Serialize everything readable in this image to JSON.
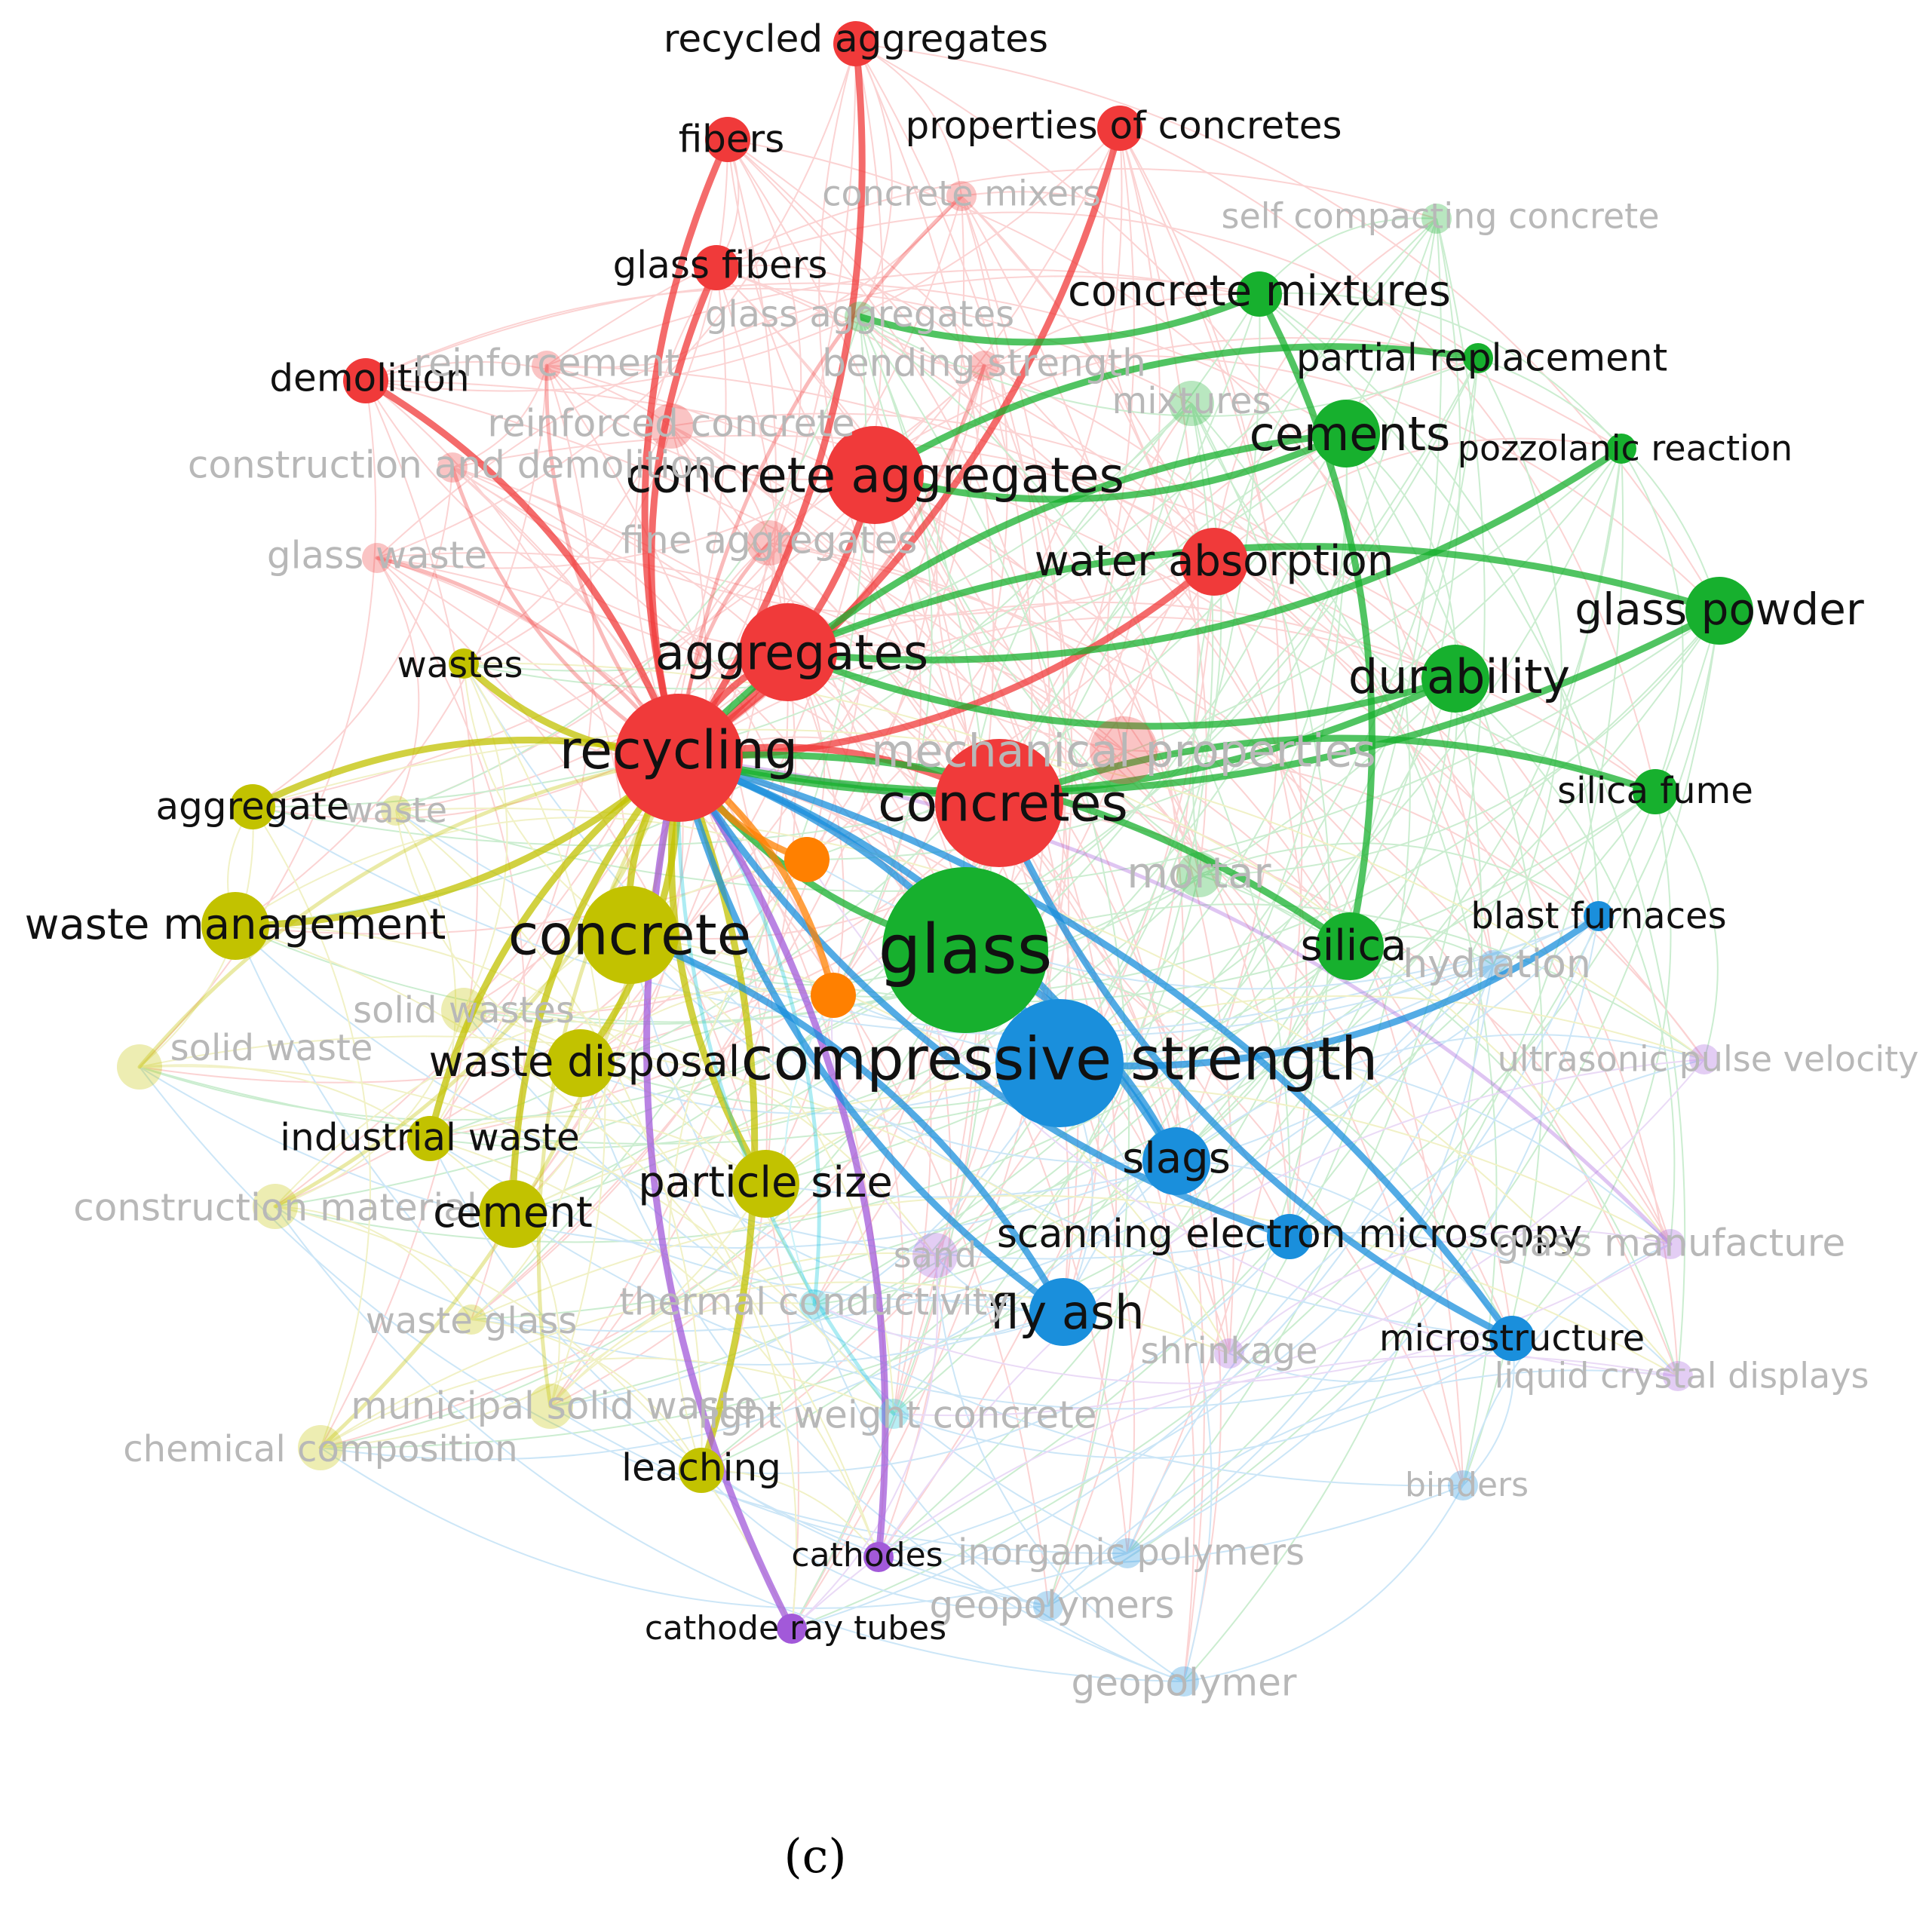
{
  "figure": {
    "caption": "(c)"
  },
  "clusters": {
    "red": "#f03a3a",
    "green": "#17b02e",
    "yellow": "#c2c200",
    "blue": "#1a8fdc",
    "purple": "#a259d9",
    "cyan": "#14c8dc",
    "orange": "#ff8000"
  },
  "nodes": [
    {
      "id": "recycling",
      "label": "recycling",
      "cluster": "red",
      "size": "xl",
      "faded": false
    },
    {
      "id": "aggregates",
      "label": "aggregates",
      "cluster": "red",
      "size": "l",
      "faded": false
    },
    {
      "id": "concrete_aggregates",
      "label": "concrete aggregates",
      "cluster": "red",
      "size": "l",
      "faded": false
    },
    {
      "id": "concretes",
      "label": "concretes",
      "cluster": "red",
      "size": "xl",
      "faded": false
    },
    {
      "id": "mechanical_properties",
      "label": "mechanical properties",
      "cluster": "red",
      "size": "m",
      "faded": true
    },
    {
      "id": "water_absorption",
      "label": "water absorption",
      "cluster": "red",
      "size": "m",
      "faded": false
    },
    {
      "id": "recycled_aggregates",
      "label": "recycled aggregates",
      "cluster": "red",
      "size": "s",
      "faded": false
    },
    {
      "id": "fibers",
      "label": "fibers",
      "cluster": "red",
      "size": "s",
      "faded": false
    },
    {
      "id": "properties_of_concretes",
      "label": "properties of concretes",
      "cluster": "red",
      "size": "s",
      "faded": false
    },
    {
      "id": "concrete_mixers",
      "label": "concrete mixers",
      "cluster": "red",
      "size": "xs",
      "faded": true
    },
    {
      "id": "glass_fibers",
      "label": "glass fibers",
      "cluster": "red",
      "size": "s",
      "faded": false
    },
    {
      "id": "demolition",
      "label": "demolition",
      "cluster": "red",
      "size": "s",
      "faded": false
    },
    {
      "id": "reinforcement",
      "label": "reinforcement",
      "cluster": "red",
      "size": "xs",
      "faded": true
    },
    {
      "id": "bending_strength",
      "label": "bending strength",
      "cluster": "red",
      "size": "xs",
      "faded": true
    },
    {
      "id": "reinforced_concrete",
      "label": "reinforced concrete",
      "cluster": "red",
      "size": "s",
      "faded": true
    },
    {
      "id": "construction_and_demolition",
      "label": "construction and demolition",
      "cluster": "red",
      "size": "xs",
      "faded": true
    },
    {
      "id": "glass_waste",
      "label": "glass waste",
      "cluster": "red",
      "size": "xs",
      "faded": true
    },
    {
      "id": "fine_aggregates",
      "label": "fine aggregates",
      "cluster": "red",
      "size": "s",
      "faded": true
    },
    {
      "id": "glass",
      "label": "glass",
      "cluster": "green",
      "size": "xxl",
      "faded": false
    },
    {
      "id": "concrete_mixtures",
      "label": "concrete mixtures",
      "cluster": "green",
      "size": "s",
      "faded": false
    },
    {
      "id": "partial_replacement",
      "label": "partial replacement",
      "cluster": "green",
      "size": "xs",
      "faded": false
    },
    {
      "id": "cements",
      "label": "cements",
      "cluster": "green",
      "size": "m",
      "faded": false
    },
    {
      "id": "pozzolanic_reaction",
      "label": "pozzolanic reaction",
      "cluster": "green",
      "size": "xs",
      "faded": false
    },
    {
      "id": "glass_powder",
      "label": "glass powder",
      "cluster": "green",
      "size": "m",
      "faded": false
    },
    {
      "id": "durability",
      "label": "durability",
      "cluster": "green",
      "size": "m",
      "faded": false
    },
    {
      "id": "silica_fume",
      "label": "silica fume",
      "cluster": "green",
      "size": "s",
      "faded": false
    },
    {
      "id": "mortar",
      "label": "mortar",
      "cluster": "green",
      "size": "s",
      "faded": true
    },
    {
      "id": "silica",
      "label": "silica",
      "cluster": "green",
      "size": "m",
      "faded": false
    },
    {
      "id": "mixtures",
      "label": "mixtures",
      "cluster": "green",
      "size": "s",
      "faded": true
    },
    {
      "id": "self_compacting_concrete",
      "label": "self compacting concrete",
      "cluster": "green",
      "size": "xs",
      "faded": true
    },
    {
      "id": "glass_aggregates",
      "label": "glass aggregates",
      "cluster": "green",
      "size": "xs",
      "faded": true
    },
    {
      "id": "compressive_strength",
      "label": "compressive strength",
      "cluster": "blue",
      "size": "xl",
      "faded": false
    },
    {
      "id": "slags",
      "label": "slags",
      "cluster": "blue",
      "size": "m",
      "faded": false
    },
    {
      "id": "scanning_electron_microscopy",
      "label": "scanning electron microscopy",
      "cluster": "blue",
      "size": "s",
      "faded": false
    },
    {
      "id": "fly_ash",
      "label": "fly ash",
      "cluster": "blue",
      "size": "m",
      "faded": false
    },
    {
      "id": "microstructure",
      "label": "microstructure",
      "cluster": "blue",
      "size": "s",
      "faded": false
    },
    {
      "id": "blast_furnaces",
      "label": "blast furnaces",
      "cluster": "blue",
      "size": "xs",
      "faded": false
    },
    {
      "id": "hydration",
      "label": "hydration",
      "cluster": "blue",
      "size": "xs",
      "faded": true
    },
    {
      "id": "binders",
      "label": "binders",
      "cluster": "blue",
      "size": "xs",
      "faded": true
    },
    {
      "id": "inorganic_polymers",
      "label": "inorganic polymers",
      "cluster": "blue",
      "size": "xs",
      "faded": true
    },
    {
      "id": "geopolymers",
      "label": "geopolymers",
      "cluster": "blue",
      "size": "xs",
      "faded": true
    },
    {
      "id": "geopolymer",
      "label": "geopolymer",
      "cluster": "blue",
      "size": "xs",
      "faded": true
    },
    {
      "id": "concrete",
      "label": "concrete",
      "cluster": "yellow",
      "size": "l",
      "faded": false
    },
    {
      "id": "waste_management",
      "label": "waste management",
      "cluster": "yellow",
      "size": "m",
      "faded": false
    },
    {
      "id": "waste_disposal",
      "label": "waste disposal",
      "cluster": "yellow",
      "size": "m",
      "faded": false
    },
    {
      "id": "wastes",
      "label": "wastes",
      "cluster": "yellow",
      "size": "xs",
      "faded": false
    },
    {
      "id": "aggregate",
      "label": "aggregate",
      "cluster": "yellow",
      "size": "s",
      "faded": false
    },
    {
      "id": "waste",
      "label": "waste",
      "cluster": "yellow",
      "size": "xs",
      "faded": true
    },
    {
      "id": "solid_wastes",
      "label": "solid wastes",
      "cluster": "yellow",
      "size": "s",
      "faded": true
    },
    {
      "id": "solid_waste",
      "label": "solid waste",
      "cluster": "yellow",
      "size": "s",
      "faded": true
    },
    {
      "id": "industrial_waste",
      "label": "industrial waste",
      "cluster": "yellow",
      "size": "s",
      "faded": false
    },
    {
      "id": "construction_materials",
      "label": "construction material",
      "cluster": "yellow",
      "size": "s",
      "faded": true
    },
    {
      "id": "cement",
      "label": "cement",
      "cluster": "yellow",
      "size": "m",
      "faded": false
    },
    {
      "id": "particle_size",
      "label": "particle size",
      "cluster": "yellow",
      "size": "m",
      "faded": false
    },
    {
      "id": "waste_glass",
      "label": "waste glass",
      "cluster": "yellow",
      "size": "xs",
      "faded": true
    },
    {
      "id": "municipal_solid_waste",
      "label": "municipal solid waste",
      "cluster": "yellow",
      "size": "s",
      "faded": true
    },
    {
      "id": "chemical_composition",
      "label": "chemical composition",
      "cluster": "yellow",
      "size": "s",
      "faded": true
    },
    {
      "id": "leaching",
      "label": "leaching",
      "cluster": "yellow",
      "size": "s",
      "faded": false
    },
    {
      "id": "sand",
      "label": "sand",
      "cluster": "purple",
      "size": "s",
      "faded": true
    },
    {
      "id": "shrinkage",
      "label": "shrinkage",
      "cluster": "purple",
      "size": "xs",
      "faded": true
    },
    {
      "id": "cathodes",
      "label": "cathodes",
      "cluster": "purple",
      "size": "xs",
      "faded": false
    },
    {
      "id": "cathode_ray_tubes",
      "label": "cathode ray tubes",
      "cluster": "purple",
      "size": "xs",
      "faded": false
    },
    {
      "id": "glass_manufacture",
      "label": "glass manufacture",
      "cluster": "purple",
      "size": "xs",
      "faded": true
    },
    {
      "id": "ultrasonic_pulse_velocity",
      "label": "ultrasonic pulse velocity",
      "cluster": "purple",
      "size": "xs",
      "faded": true
    },
    {
      "id": "liquid_crystal_displays",
      "label": "liquid crystal displays",
      "cluster": "purple",
      "size": "xs",
      "faded": true
    },
    {
      "id": "thermal_conductivity",
      "label": "thermal conductivity",
      "cluster": "cyan",
      "size": "xs",
      "faded": true
    },
    {
      "id": "light_weight_concrete",
      "label": "light weight concrete",
      "cluster": "cyan",
      "size": "xs",
      "faded": true
    },
    {
      "id": "orange1",
      "label": "",
      "cluster": "orange",
      "size": "s",
      "faded": false
    },
    {
      "id": "orange2",
      "label": "",
      "cluster": "orange",
      "size": "s",
      "faded": false
    }
  ],
  "links": [
    [
      "recycling",
      "aggregates"
    ],
    [
      "recycling",
      "concrete_aggregates"
    ],
    [
      "recycling",
      "concretes"
    ],
    [
      "recycling",
      "recycled_aggregates"
    ],
    [
      "recycling",
      "fibers"
    ],
    [
      "recycling",
      "properties_of_concretes"
    ],
    [
      "recycling",
      "glass_fibers"
    ],
    [
      "recycling",
      "demolition"
    ],
    [
      "recycling",
      "reinforcement"
    ],
    [
      "recycling",
      "bending_strength"
    ],
    [
      "recycling",
      "construction_and_demolition"
    ],
    [
      "recycling",
      "glass_waste"
    ],
    [
      "recycling",
      "fine_aggregates"
    ],
    [
      "recycling",
      "water_absorption"
    ],
    [
      "recycling",
      "concrete_mixers"
    ],
    [
      "recycling",
      "glass"
    ],
    [
      "recycling",
      "compressive_strength"
    ],
    [
      "recycling",
      "concrete"
    ],
    [
      "recycling",
      "waste_management"
    ],
    [
      "recycling",
      "aggregate"
    ],
    [
      "recycling",
      "wastes"
    ],
    [
      "recycling",
      "solid_waste"
    ],
    [
      "recycling",
      "waste_disposal"
    ],
    [
      "recycling",
      "industrial_waste"
    ],
    [
      "recycling",
      "construction_materials"
    ],
    [
      "recycling",
      "cement"
    ],
    [
      "recycling",
      "chemical_composition"
    ],
    [
      "recycling",
      "municipal_solid_waste"
    ],
    [
      "recycling",
      "leaching"
    ],
    [
      "recycling",
      "particle_size"
    ],
    [
      "recycling",
      "thermal_conductivity"
    ],
    [
      "recycling",
      "light_weight_concrete"
    ],
    [
      "recycling",
      "cathodes"
    ],
    [
      "recycling",
      "cathode_ray_tubes"
    ],
    [
      "recycling",
      "slags"
    ],
    [
      "recycling",
      "fly_ash"
    ],
    [
      "recycling",
      "microstructure"
    ],
    [
      "recycling",
      "scanning_electron_microscopy"
    ],
    [
      "recycling",
      "glass_manufacture"
    ],
    [
      "recycling",
      "durability"
    ],
    [
      "recycling",
      "cements"
    ],
    [
      "recycling",
      "glass_powder"
    ],
    [
      "recycling",
      "silica"
    ],
    [
      "recycling",
      "orange1"
    ],
    [
      "recycling",
      "orange2"
    ],
    [
      "glass_aggregates",
      "concrete_mixtures"
    ],
    [
      "concrete_mixtures",
      "silica"
    ],
    [
      "concrete_aggregates",
      "cements"
    ],
    [
      "concrete_aggregates",
      "partial_replacement"
    ],
    [
      "aggregates",
      "durability"
    ],
    [
      "aggregates",
      "glass_powder"
    ],
    [
      "aggregates",
      "pozzolanic_reaction"
    ],
    [
      "concretes",
      "silica_fume"
    ],
    [
      "concretes",
      "microstructure"
    ],
    [
      "glass",
      "slags"
    ],
    [
      "compressive_strength",
      "blast_furnaces"
    ],
    [
      "concrete",
      "fly_ash"
    ]
  ]
}
